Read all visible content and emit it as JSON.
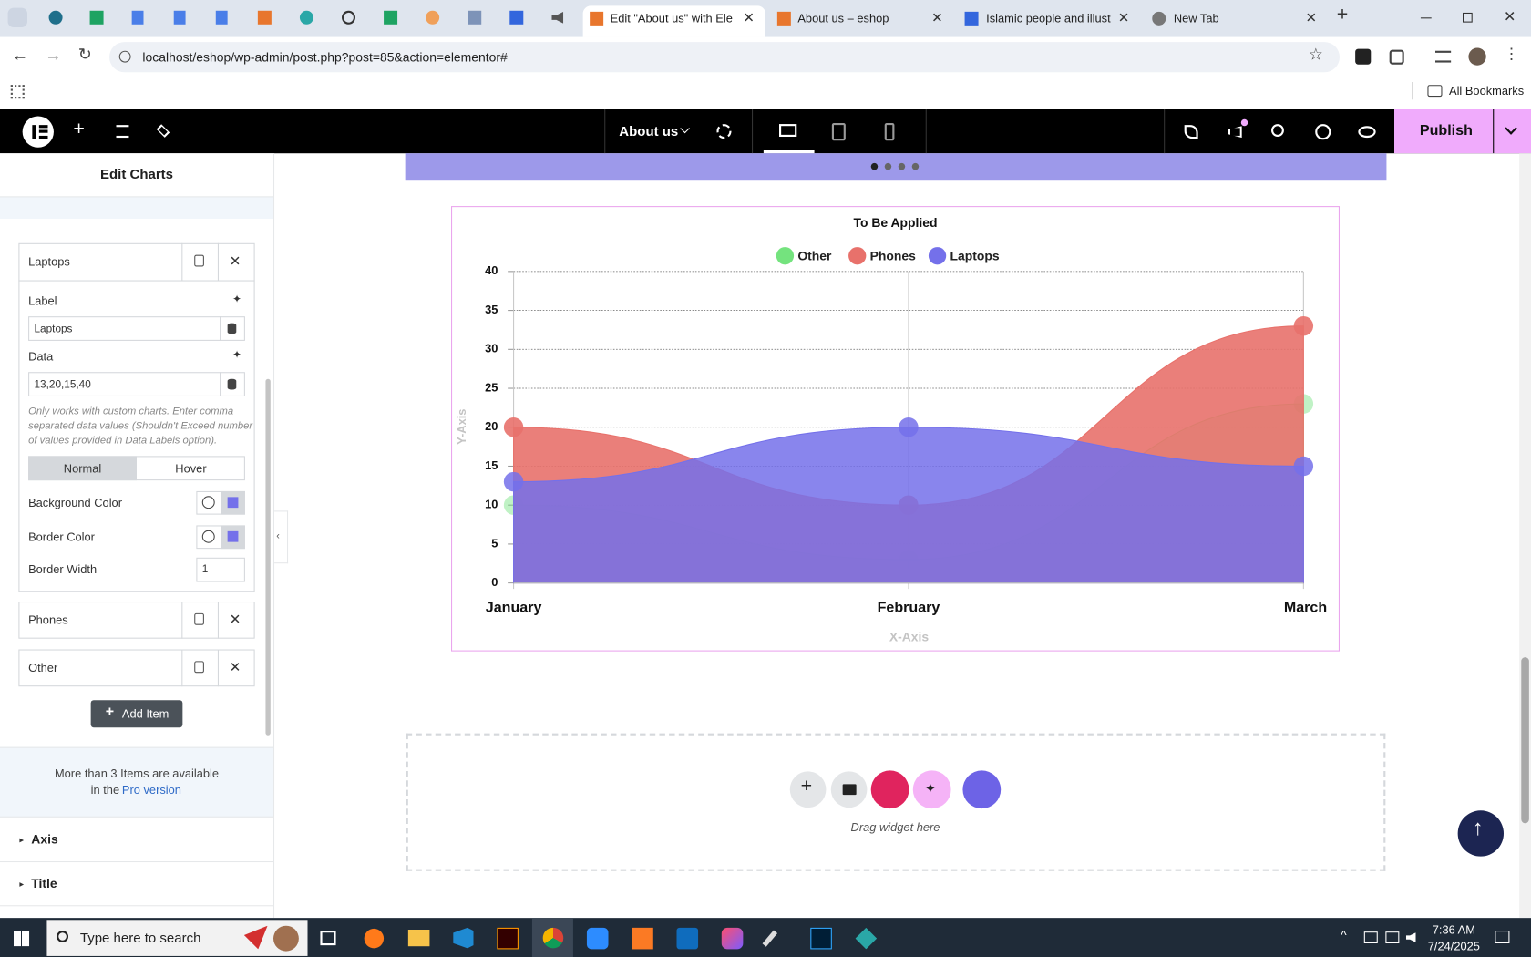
{
  "browser": {
    "tabs": [
      "Edit \"About us\" with Elem",
      "About us – eshop",
      "Islamic people and illustr",
      "New Tab"
    ],
    "url": "localhost/eshop/wp-admin/post.php?post=85&action=elementor#",
    "bookmarks": "All Bookmarks"
  },
  "editor": {
    "page": "About us",
    "publish": "Publish"
  },
  "panel": {
    "title": "Edit Charts",
    "items": [
      {
        "label": "Laptops"
      },
      {
        "label": "Phones"
      },
      {
        "label": "Other"
      }
    ],
    "fields": {
      "label_caption": "Label",
      "label_value": "Laptops",
      "data_caption": "Data",
      "data_value": "13,20,15,40",
      "help": [
        "Only works with custom charts. Enter comma",
        "separated data values (Shouldn't Exceed number",
        "of values provided in Data Labels option)."
      ],
      "normal": "Normal",
      "hover": "Hover",
      "background_color": "Background Color",
      "border_color": "Border Color",
      "border_width": "Border Width",
      "border_width_value": "1"
    },
    "add_item": "Add Item",
    "pro": [
      "More than 3 Items are available",
      "in the",
      "Pro version"
    ],
    "sections": [
      "Axis",
      "Title"
    ]
  },
  "canvas": {
    "drop_hint": "Drag widget here"
  },
  "chart_data": {
    "type": "area",
    "title": "To Be Applied",
    "x_label": "X-Axis",
    "y_label": "Y-Axis",
    "categories": [
      "January",
      "February",
      "March"
    ],
    "series": [
      {
        "name": "Other",
        "color": "#74e37e",
        "values": [
          10,
          3,
          23
        ]
      },
      {
        "name": "Phones",
        "color": "#e8716b",
        "values": [
          20,
          10,
          33
        ]
      },
      {
        "name": "Laptops",
        "color": "#7470ea",
        "values": [
          13,
          20,
          15
        ]
      }
    ],
    "ylim": [
      0,
      40
    ],
    "yticks": [
      0,
      5,
      10,
      15,
      20,
      25,
      30,
      35,
      40
    ],
    "grid": true,
    "legend": "top"
  },
  "taskbar": {
    "search": "Type here to search",
    "time": "7:36 AM",
    "date": "7/24/2025"
  }
}
